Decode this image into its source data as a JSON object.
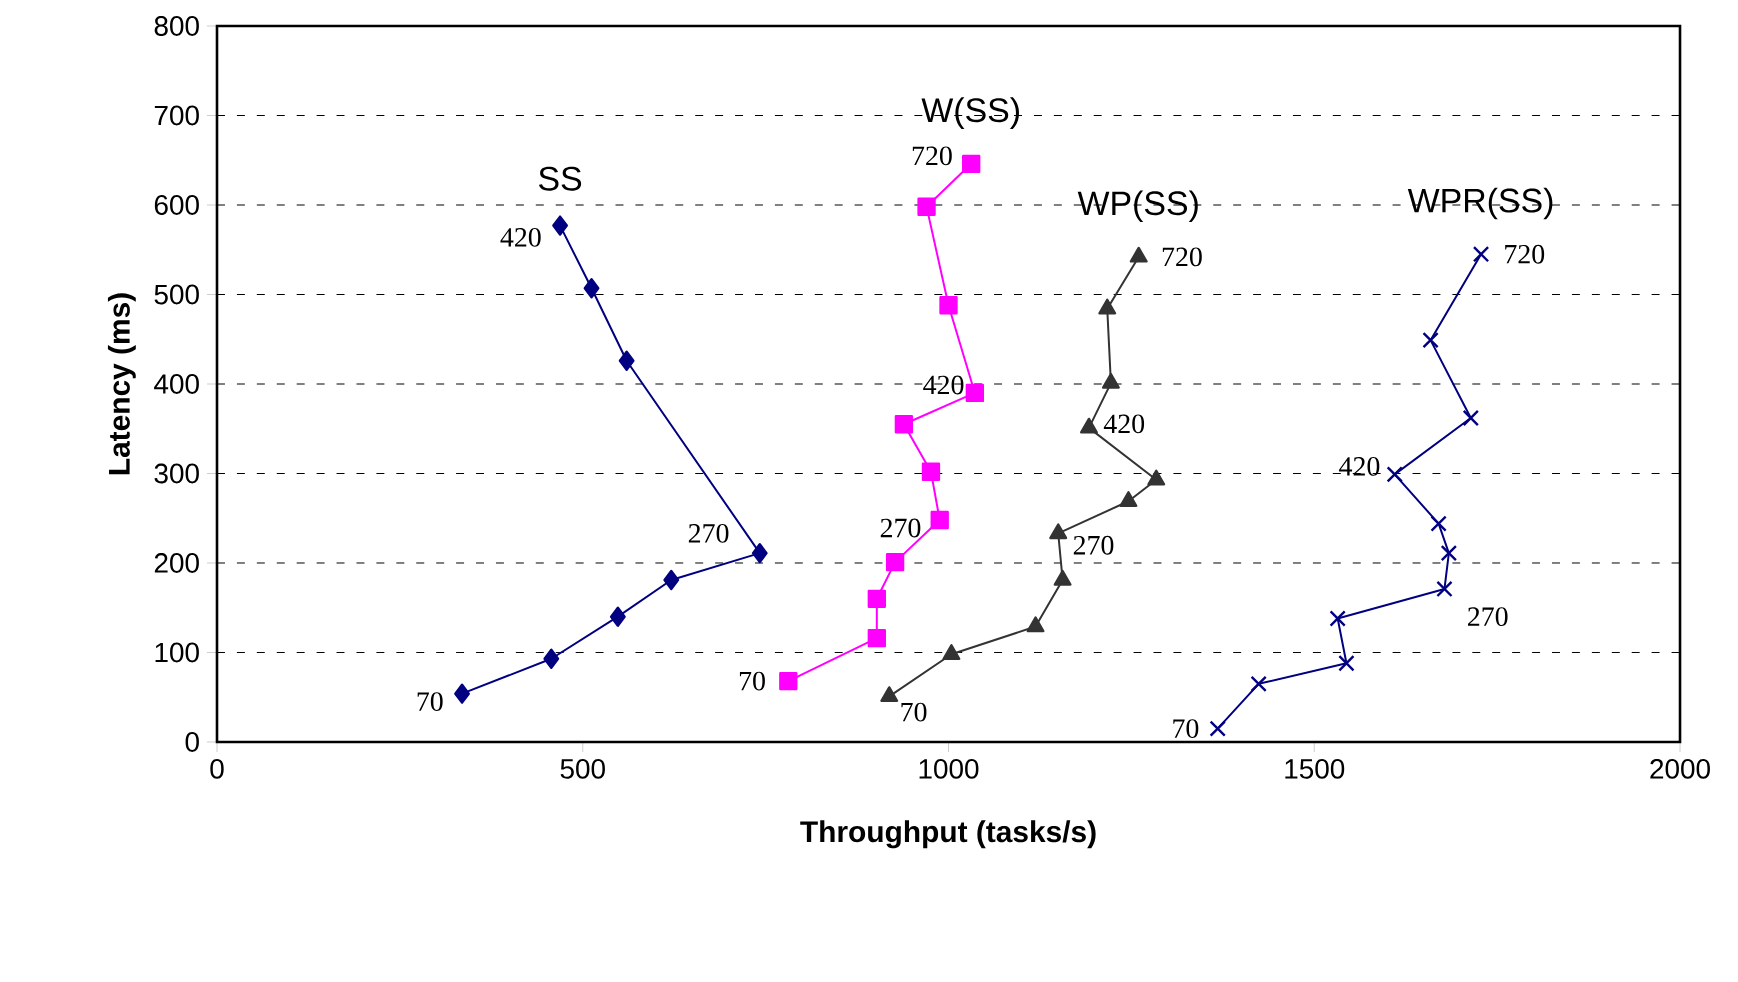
{
  "chart_data": {
    "type": "line",
    "xlabel": "Throughput (tasks/s)",
    "ylabel": "Latency (ms)",
    "xlim": [
      0,
      2000
    ],
    "xticks": [
      0,
      500,
      1000,
      1500,
      2000
    ],
    "ylim": [
      0,
      800
    ],
    "yticks": [
      0,
      100,
      200,
      300,
      400,
      500,
      600,
      700,
      800
    ],
    "grid": "y",
    "line_style": "solid",
    "series": [
      {
        "name": "SS",
        "color": "#000080",
        "marker": "diamond",
        "x": [
          335,
          457,
          548,
          621,
          742,
          560,
          512,
          469
        ],
        "values": [
          54,
          93,
          140,
          181,
          211,
          426,
          507,
          577
        ]
      },
      {
        "name": "W(SS)",
        "color": "#ff00ff",
        "marker": "square",
        "x": [
          781,
          902,
          902,
          927,
          988,
          976,
          939,
          1036,
          1000,
          970,
          1031
        ],
        "values": [
          68,
          116,
          160,
          201,
          248,
          302,
          355,
          390,
          488,
          598,
          646
        ]
      },
      {
        "name": "WP(SS)",
        "color": "#333333",
        "marker": "triangle",
        "x": [
          919,
          1004,
          1119,
          1156,
          1150,
          1246,
          1284,
          1192,
          1222,
          1217,
          1260
        ],
        "values": [
          51,
          98,
          129,
          181,
          233,
          269,
          293,
          351,
          401,
          484,
          542
        ]
      },
      {
        "name": "WPR(SS)",
        "color": "#000080",
        "marker": "cross",
        "x": [
          1368,
          1424,
          1544,
          1532,
          1678,
          1684,
          1670,
          1610,
          1714,
          1659,
          1728
        ],
        "values": [
          15,
          65,
          88,
          138,
          171,
          211,
          244,
          299,
          362,
          449,
          545
        ]
      }
    ],
    "annotations": [
      {
        "text": "70",
        "x": 335,
        "y": 54
      },
      {
        "text": "270",
        "x": 742,
        "y": 211
      },
      {
        "text": "420",
        "x": 469,
        "y": 577
      },
      {
        "text": "70",
        "x": 781,
        "y": 68
      },
      {
        "text": "270",
        "x": 988,
        "y": 248
      },
      {
        "text": "420",
        "x": 1036,
        "y": 390
      },
      {
        "text": "720",
        "x": 1031,
        "y": 646
      },
      {
        "text": "70",
        "x": 919,
        "y": 51
      },
      {
        "text": "270",
        "x": 1150,
        "y": 233
      },
      {
        "text": "420",
        "x": 1192,
        "y": 351
      },
      {
        "text": "720",
        "x": 1260,
        "y": 542
      },
      {
        "text": "70",
        "x": 1368,
        "y": 15
      },
      {
        "text": "270",
        "x": 1678,
        "y": 171
      },
      {
        "text": "420",
        "x": 1610,
        "y": 299
      },
      {
        "text": "720",
        "x": 1728,
        "y": 545
      }
    ]
  }
}
